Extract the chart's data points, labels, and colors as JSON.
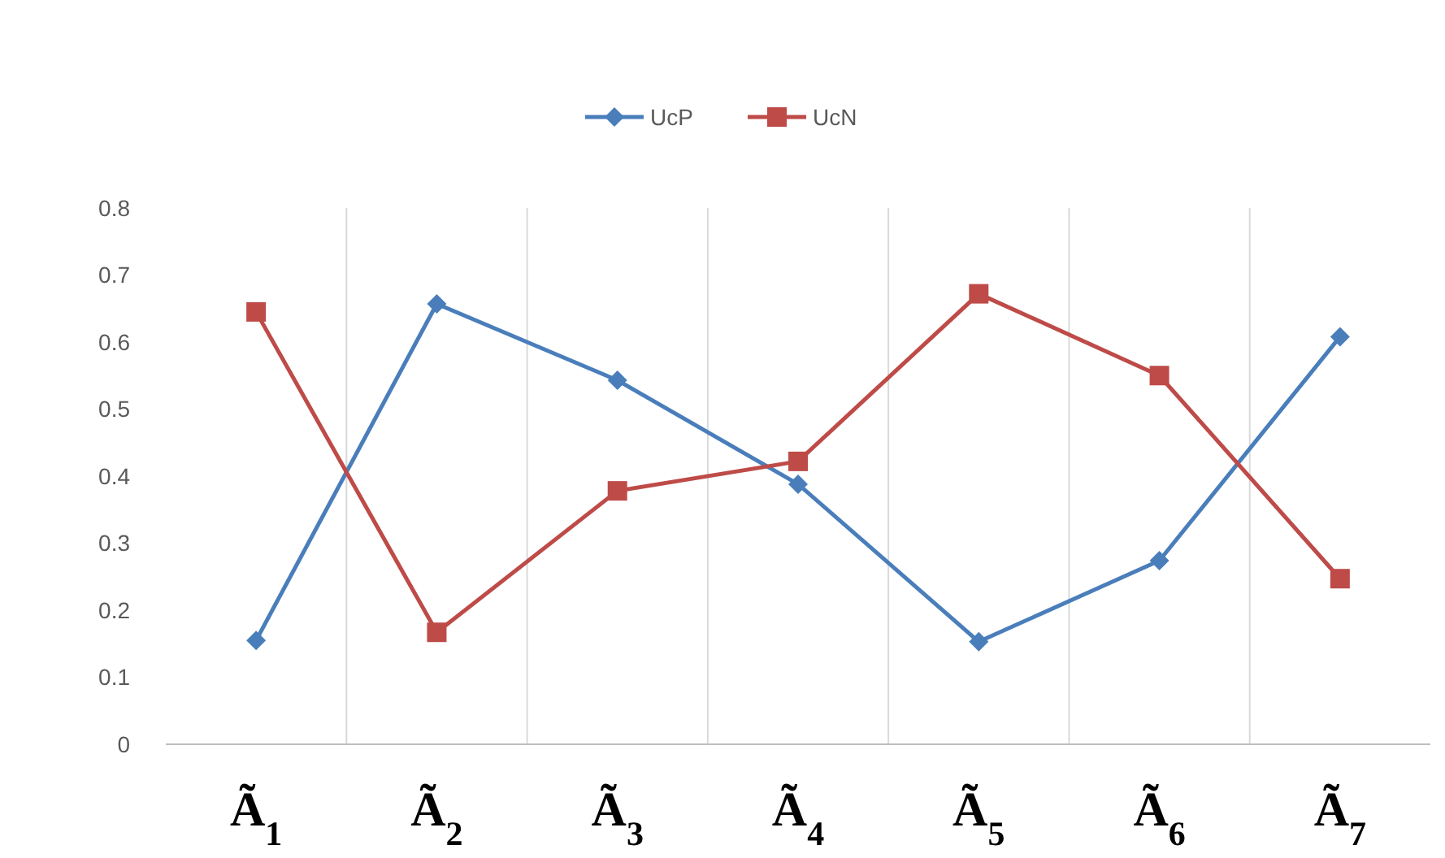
{
  "chart_data": {
    "type": "line",
    "categories": [
      "Ã$_{1}$",
      "Ã$_{2}$",
      "Ã$_{3}$",
      "Ã$_{4}$",
      "Ã$_{5}$",
      "Ã$_{6}$",
      "Ã$_{7}$"
    ],
    "series": [
      {
        "name": "UcP",
        "color": "#4a7ebb",
        "marker": "diamond",
        "values": [
          0.155,
          0.657,
          0.543,
          0.388,
          0.153,
          0.274,
          0.608
        ]
      },
      {
        "name": "UcN",
        "color": "#be4b48",
        "marker": "square",
        "values": [
          0.645,
          0.167,
          0.378,
          0.422,
          0.672,
          0.55,
          0.247
        ]
      }
    ],
    "ylim": [
      0,
      0.8
    ],
    "yticks": [
      0,
      0.1,
      0.2,
      0.3,
      0.4,
      0.5,
      0.6,
      0.7,
      0.8
    ],
    "grid": "x",
    "legend": "top",
    "line_style": "solid"
  }
}
